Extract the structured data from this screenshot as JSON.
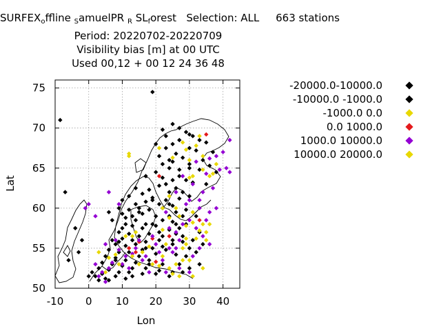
{
  "chart_data": {
    "type": "scatter",
    "title": {
      "line1": {
        "a": "SURFEX",
        "b": "o",
        "c": "ffline",
        "d": "S",
        "e": "amuelPR",
        "f": "R",
        "g": "SL",
        "h": "f",
        "i": "orest   Selection: ALL     663 stations"
      },
      "line2": "Period: 20220702-20220709",
      "line3": "Visibility bias [m] at  00 UTC",
      "line4": "Used  00,12  + 00 12 24 36 48"
    },
    "xlabel": "Lon",
    "ylabel": "Lat",
    "xlim": [
      -10,
      45
    ],
    "ylim": [
      50,
      76
    ],
    "xticks": [
      "-10",
      "0",
      "10",
      "20",
      "30",
      "40"
    ],
    "yticks": [
      "50",
      "55",
      "60",
      "65",
      "70",
      "75"
    ],
    "grid": true,
    "legend_position": "right",
    "series": [
      {
        "name": "-20000.0-10000.0",
        "color": "#000000",
        "points": [
          [
            19,
            74.5
          ],
          [
            -8.5,
            71.0
          ],
          [
            25,
            70.5
          ],
          [
            27,
            70.0
          ],
          [
            22,
            69.8
          ],
          [
            29,
            69.5
          ],
          [
            30,
            69.2
          ],
          [
            23,
            69.0
          ],
          [
            31,
            69.0
          ],
          [
            33,
            68.5
          ],
          [
            27,
            68.5
          ],
          [
            25,
            68.0
          ],
          [
            35,
            68.2
          ],
          [
            20,
            68.0
          ],
          [
            23,
            67.5
          ],
          [
            30,
            67.5
          ],
          [
            32,
            67.2
          ],
          [
            37,
            67.0
          ],
          [
            21,
            66.5
          ],
          [
            26,
            66.8
          ],
          [
            28,
            66.3
          ],
          [
            34,
            66.0
          ],
          [
            25,
            65.8
          ],
          [
            22,
            65.5
          ],
          [
            30,
            65.5
          ],
          [
            36,
            65.3
          ],
          [
            24,
            65.0
          ],
          [
            27,
            64.8
          ],
          [
            33,
            64.8
          ],
          [
            38,
            64.5
          ],
          [
            20,
            64.5
          ],
          [
            17,
            64.0
          ],
          [
            22,
            63.8
          ],
          [
            25,
            63.5
          ],
          [
            29,
            63.5
          ],
          [
            31,
            63.2
          ],
          [
            35,
            63.0
          ],
          [
            14,
            62.5
          ],
          [
            18,
            62.3
          ],
          [
            21,
            62.8
          ],
          [
            26,
            62.5
          ],
          [
            28,
            62.0
          ],
          [
            24,
            62.0
          ],
          [
            12,
            61.5
          ],
          [
            16,
            61.8
          ],
          [
            19,
            61.3
          ],
          [
            23,
            61.0
          ],
          [
            27,
            61.2
          ],
          [
            30,
            61.5
          ],
          [
            10,
            61.0
          ],
          [
            14,
            60.5
          ],
          [
            17,
            60.8
          ],
          [
            21,
            60.5
          ],
          [
            25,
            60.3
          ],
          [
            9,
            60.0
          ],
          [
            12,
            59.8
          ],
          [
            15,
            59.5
          ],
          [
            18,
            59.8
          ],
          [
            22,
            60.0
          ],
          [
            26,
            59.5
          ],
          [
            29,
            59.8
          ],
          [
            6,
            59.5
          ],
          [
            10,
            59.3
          ],
          [
            13,
            59.0
          ],
          [
            16,
            59.3
          ],
          [
            20,
            59.0
          ],
          [
            24,
            59.0
          ],
          [
            28,
            59.0
          ],
          [
            7,
            58.5
          ],
          [
            11,
            58.8
          ],
          [
            14,
            58.5
          ],
          [
            17,
            58.0
          ],
          [
            22,
            58.5
          ],
          [
            25,
            58.3
          ],
          [
            27,
            57.5
          ],
          [
            29,
            58.0
          ],
          [
            10,
            57.5
          ],
          [
            13,
            57.8
          ],
          [
            16,
            57.5
          ],
          [
            20,
            57.8
          ],
          [
            24,
            57.3
          ],
          [
            9,
            57.0
          ],
          [
            12,
            56.8
          ],
          [
            15,
            56.5
          ],
          [
            18,
            56.8
          ],
          [
            22,
            56.5
          ],
          [
            26,
            56.8
          ],
          [
            7,
            56.0
          ],
          [
            10,
            56.2
          ],
          [
            13,
            56.0
          ],
          [
            17,
            55.8
          ],
          [
            21,
            56.0
          ],
          [
            25,
            55.5
          ],
          [
            28,
            55.8
          ],
          [
            8,
            55.5
          ],
          [
            11,
            55.3
          ],
          [
            14,
            55.5
          ],
          [
            16,
            54.8
          ],
          [
            19,
            55.0
          ],
          [
            23,
            54.8
          ],
          [
            6,
            54.8
          ],
          [
            9,
            54.5
          ],
          [
            12,
            54.5
          ],
          [
            15,
            54.0
          ],
          [
            20,
            54.3
          ],
          [
            26,
            54.2
          ],
          [
            29,
            54.0
          ],
          [
            5,
            54.0
          ],
          [
            8,
            53.8
          ],
          [
            11,
            53.5
          ],
          [
            14,
            53.2
          ],
          [
            18,
            53.5
          ],
          [
            22,
            53.0
          ],
          [
            27,
            53.0
          ],
          [
            4,
            53.2
          ],
          [
            7,
            53.0
          ],
          [
            10,
            52.8
          ],
          [
            13,
            52.5
          ],
          [
            17,
            52.5
          ],
          [
            21,
            52.2
          ],
          [
            25,
            52.0
          ],
          [
            3,
            52.5
          ],
          [
            6,
            52.3
          ],
          [
            9,
            52.0
          ],
          [
            12,
            52.0
          ],
          [
            16,
            51.8
          ],
          [
            20,
            51.8
          ],
          [
            24,
            51.5
          ],
          [
            2,
            51.5
          ],
          [
            4,
            51.8
          ],
          [
            5,
            51.2
          ],
          [
            8,
            51.5
          ],
          [
            11,
            51.2
          ],
          [
            0,
            51.5
          ],
          [
            1,
            52.0
          ],
          [
            -2,
            56.0
          ],
          [
            -3,
            54.5
          ],
          [
            -6,
            53.5
          ],
          [
            -7,
            62.0
          ],
          [
            -4,
            57.5
          ],
          [
            6,
            51.0
          ],
          [
            3,
            51.0
          ],
          [
            33,
            57.0
          ],
          [
            31,
            56.0
          ],
          [
            30,
            55.0
          ],
          [
            28,
            56.5
          ],
          [
            32,
            54.5
          ],
          [
            34,
            55.5
          ],
          [
            33,
            53.0
          ],
          [
            30,
            52.5
          ],
          [
            28,
            52.0
          ]
        ]
      },
      {
        "name": "-10000.0 -1000.0",
        "color": "#000000",
        "points": [
          [
            24,
            66.0
          ],
          [
            30,
            65.0
          ],
          [
            27,
            64.0
          ],
          [
            23,
            63.0
          ],
          [
            19,
            61.0
          ],
          [
            15,
            60.0
          ],
          [
            11,
            58.0
          ],
          [
            9,
            55.8
          ],
          [
            8,
            53.5
          ],
          [
            13,
            51.5
          ],
          [
            17,
            55.0
          ],
          [
            21,
            57.0
          ],
          [
            24,
            60.5
          ],
          [
            32,
            59.0
          ],
          [
            26,
            58.0
          ],
          [
            18,
            53.0
          ],
          [
            22,
            55.2
          ],
          [
            25,
            56.0
          ],
          [
            19,
            58.0
          ]
        ]
      },
      {
        "name": "-1000.0 0.0",
        "color": "#e8d800",
        "points": [
          [
            21,
            67.5
          ],
          [
            12,
            66.5
          ],
          [
            28,
            68.2
          ],
          [
            29,
            67.3
          ],
          [
            32,
            67.8
          ],
          [
            34,
            66.5
          ],
          [
            31,
            64.0
          ],
          [
            37,
            64.3
          ],
          [
            34,
            64.8
          ],
          [
            14,
            57.0
          ],
          [
            24,
            58.8
          ],
          [
            22,
            57.3
          ],
          [
            29,
            57.8
          ],
          [
            31,
            58.2
          ],
          [
            33,
            57.2
          ],
          [
            35,
            56.0
          ],
          [
            28,
            55.0
          ],
          [
            22,
            54.0
          ],
          [
            19,
            53.0
          ],
          [
            16,
            54.5
          ],
          [
            24,
            52.5
          ],
          [
            13,
            56.5
          ],
          [
            8,
            54.2
          ],
          [
            5,
            52.0
          ],
          [
            3,
            54.5
          ],
          [
            30,
            53.5
          ],
          [
            34,
            52.5
          ],
          [
            31,
            51.5
          ],
          [
            27,
            51.5
          ],
          [
            29,
            56.2
          ],
          [
            26,
            53.0
          ],
          [
            36,
            58.0
          ]
        ]
      },
      {
        "name": "0.0 1000.0",
        "color": "#e41a1c",
        "points": [
          [
            35,
            69.2
          ],
          [
            21,
            64.0
          ],
          [
            12,
            55.0
          ],
          [
            15,
            55.8
          ],
          [
            19,
            56.2
          ],
          [
            14,
            54.5
          ],
          [
            33,
            58.5
          ],
          [
            20,
            53.3
          ],
          [
            24,
            56.5
          ]
        ]
      },
      {
        "name": "1000.0 10000.0",
        "color": "#9400d3",
        "points": [
          [
            40,
            67.0
          ],
          [
            42,
            68.5
          ],
          [
            36,
            66.2
          ],
          [
            38,
            66.5
          ],
          [
            41,
            65.0
          ],
          [
            39,
            64.8
          ],
          [
            35,
            64.3
          ],
          [
            32,
            65.8
          ],
          [
            28,
            64.0
          ],
          [
            31,
            63.0
          ],
          [
            34,
            62.0
          ],
          [
            26,
            62.0
          ],
          [
            30,
            61.0
          ],
          [
            33,
            60.0
          ],
          [
            36,
            59.5
          ],
          [
            35,
            58.5
          ],
          [
            29,
            60.5
          ],
          [
            32,
            57.5
          ],
          [
            27,
            56.0
          ],
          [
            24,
            55.0
          ],
          [
            25,
            54.5
          ],
          [
            22,
            53.5
          ],
          [
            27,
            52.5
          ],
          [
            30,
            52.0
          ],
          [
            33,
            55.0
          ],
          [
            31,
            54.0
          ],
          [
            34,
            56.5
          ],
          [
            20,
            55.5
          ],
          [
            17,
            54.0
          ],
          [
            14,
            55.0
          ],
          [
            11,
            54.0
          ],
          [
            9,
            54.8
          ],
          [
            7,
            53.2
          ],
          [
            6,
            52.5
          ],
          [
            4,
            52.0
          ],
          [
            3,
            51.5
          ],
          [
            5,
            50.8
          ],
          [
            10,
            53.0
          ],
          [
            12,
            52.5
          ],
          [
            16,
            53.5
          ],
          [
            18,
            52.0
          ],
          [
            23,
            52.0
          ],
          [
            26,
            55.0
          ],
          [
            21,
            54.5
          ],
          [
            19,
            56.5
          ],
          [
            15,
            56.0
          ],
          [
            13,
            54.3
          ],
          [
            8,
            56.0
          ],
          [
            5,
            55.5
          ],
          [
            2,
            53.0
          ],
          [
            0,
            60.5
          ],
          [
            -1,
            60.0
          ],
          [
            2,
            59.0
          ],
          [
            6,
            62.0
          ],
          [
            9,
            60.5
          ],
          [
            24,
            57.5
          ],
          [
            28,
            58.0
          ],
          [
            23,
            59.5
          ],
          [
            26,
            57.0
          ],
          [
            30,
            58.5
          ],
          [
            36,
            55.5
          ],
          [
            38,
            60.0
          ],
          [
            33,
            61.0
          ],
          [
            37,
            62.5
          ],
          [
            42,
            64.5
          ]
        ]
      },
      {
        "name": "10000.0 20000.0",
        "color": "#e8d800",
        "points": [
          [
            12,
            66.8
          ],
          [
            30,
            66.0
          ],
          [
            33,
            69.0
          ],
          [
            25,
            66.3
          ],
          [
            36,
            64.0
          ],
          [
            38,
            65.5
          ],
          [
            30,
            63.8
          ],
          [
            22,
            60.0
          ],
          [
            27,
            59.0
          ],
          [
            31,
            59.5
          ],
          [
            34,
            58.0
          ],
          [
            29,
            55.5
          ],
          [
            23,
            55.5
          ],
          [
            18,
            55.2
          ],
          [
            13,
            54.0
          ],
          [
            9,
            53.0
          ],
          [
            6,
            53.8
          ],
          [
            11,
            56.5
          ],
          [
            15,
            53.0
          ],
          [
            21,
            52.8
          ],
          [
            25,
            51.8
          ],
          [
            28,
            53.5
          ],
          [
            32,
            56.2
          ],
          [
            35,
            57.0
          ],
          [
            26,
            60.0
          ],
          [
            24,
            61.5
          ]
        ]
      }
    ]
  }
}
